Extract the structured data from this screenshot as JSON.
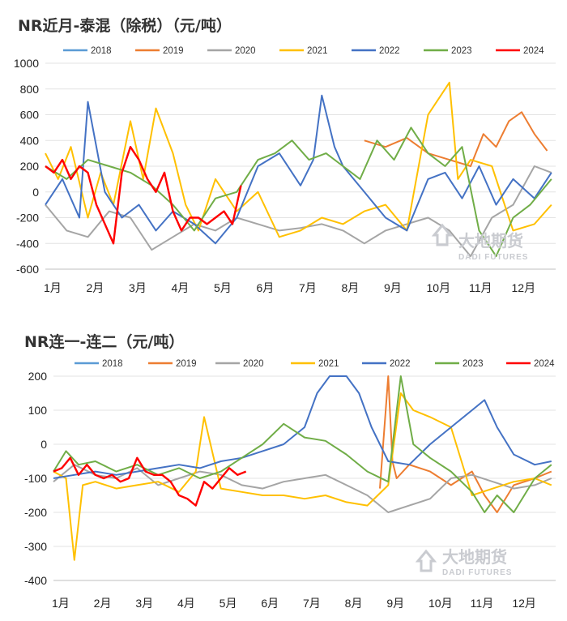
{
  "charts": [
    {
      "title": "NR近月-泰混（除税）（元/吨）",
      "watermark_cn": "大地期货",
      "watermark_en": "DADI FUTURES"
    },
    {
      "title": "NR连一-连二（元/吨）",
      "watermark_cn": "大地期货",
      "watermark_en": "DADI FUTURES"
    }
  ],
  "chart_data": [
    {
      "type": "line",
      "title": "NR近月-泰混（除税）（元/吨）",
      "ylim": [
        -600,
        1000
      ],
      "yticks": [
        1000,
        800,
        600,
        400,
        200,
        0,
        -200,
        -400,
        -600
      ],
      "xticks": [
        "1月",
        "2月",
        "3月",
        "4月",
        "5月",
        "6月",
        "7月",
        "8月",
        "9月",
        "10月",
        "11月",
        "12月"
      ],
      "legend_position": "top",
      "series": [
        {
          "name": "2018",
          "color": "#5b9bd5",
          "x": [],
          "y": []
        },
        {
          "name": "2019",
          "color": "#ed7d31",
          "x": [
            8.5,
            9.0,
            9.5,
            10.0,
            10.5,
            11.0,
            11.3,
            11.6,
            11.9,
            12.2,
            12.5,
            12.8
          ],
          "y": [
            400,
            350,
            420,
            300,
            250,
            200,
            450,
            350,
            550,
            620,
            450,
            320
          ]
        },
        {
          "name": "2020",
          "color": "#a5a5a5",
          "x": [
            1.0,
            1.5,
            2.0,
            2.5,
            3.0,
            3.5,
            4.0,
            4.5,
            5.0,
            5.5,
            6.0,
            6.5,
            7.0,
            7.5,
            8.0,
            8.5,
            9.0,
            9.5,
            10.0,
            10.5,
            11.0,
            11.5,
            12.0,
            12.5,
            12.9
          ],
          "y": [
            -100,
            -300,
            -350,
            -150,
            -200,
            -450,
            -350,
            -250,
            -300,
            -200,
            -250,
            -300,
            -280,
            -250,
            -300,
            -400,
            -300,
            -250,
            -200,
            -300,
            -500,
            -200,
            -100,
            200,
            150
          ]
        },
        {
          "name": "2021",
          "color": "#ffc000",
          "x": [
            1.0,
            1.3,
            1.6,
            2.0,
            2.3,
            2.6,
            3.0,
            3.3,
            3.6,
            4.0,
            4.3,
            4.6,
            5.0,
            5.5,
            6.0,
            6.5,
            7.0,
            7.5,
            8.0,
            8.5,
            9.0,
            9.5,
            10.0,
            10.5,
            10.7,
            11.0,
            11.5,
            12.0,
            12.5,
            12.9
          ],
          "y": [
            300,
            100,
            350,
            -200,
            150,
            -100,
            550,
            100,
            650,
            300,
            -100,
            -300,
            100,
            -150,
            0,
            -350,
            -300,
            -200,
            -250,
            -150,
            -100,
            -300,
            600,
            850,
            100,
            250,
            200,
            -300,
            -250,
            -100
          ]
        },
        {
          "name": "2022",
          "color": "#4472c4",
          "x": [
            1.0,
            1.4,
            1.8,
            2.0,
            2.4,
            2.8,
            3.2,
            3.6,
            4.0,
            4.5,
            5.0,
            5.5,
            6.0,
            6.5,
            7.0,
            7.3,
            7.5,
            7.8,
            8.0,
            8.5,
            9.0,
            9.5,
            10.0,
            10.4,
            10.8,
            11.2,
            11.6,
            12.0,
            12.5,
            12.9
          ],
          "y": [
            -100,
            100,
            -200,
            700,
            0,
            -200,
            -100,
            -300,
            -150,
            -250,
            -400,
            -200,
            200,
            300,
            50,
            250,
            750,
            350,
            200,
            0,
            -200,
            -300,
            100,
            150,
            -50,
            200,
            -100,
            100,
            -50,
            150
          ]
        },
        {
          "name": "2023",
          "color": "#70ad47",
          "x": [
            1.0,
            1.5,
            2.0,
            2.5,
            3.0,
            3.5,
            4.0,
            4.5,
            5.0,
            5.5,
            6.0,
            6.4,
            6.8,
            7.2,
            7.6,
            8.0,
            8.4,
            8.8,
            9.2,
            9.6,
            10.0,
            10.4,
            10.8,
            11.2,
            11.6,
            12.0,
            12.4,
            12.9
          ],
          "y": [
            200,
            100,
            250,
            200,
            150,
            50,
            -100,
            -300,
            -50,
            0,
            250,
            300,
            400,
            250,
            300,
            200,
            100,
            400,
            250,
            500,
            300,
            200,
            350,
            -300,
            -500,
            -200,
            -100,
            100
          ]
        },
        {
          "name": "2024",
          "color": "#ff0000",
          "x": [
            1.0,
            1.2,
            1.4,
            1.6,
            1.8,
            2.0,
            2.2,
            2.4,
            2.6,
            2.8,
            3.0,
            3.2,
            3.4,
            3.6,
            3.8,
            4.0,
            4.2,
            4.4,
            4.6,
            4.8,
            5.0,
            5.2,
            5.4,
            5.6
          ],
          "y": [
            200,
            150,
            250,
            100,
            200,
            150,
            -100,
            -250,
            -400,
            150,
            350,
            250,
            100,
            0,
            150,
            -150,
            -300,
            -200,
            -200,
            -250,
            -200,
            -150,
            -250,
            50
          ]
        }
      ]
    },
    {
      "type": "line",
      "title": "NR连一-连二（元/吨）",
      "ylim": [
        -400,
        200
      ],
      "yticks": [
        200,
        100,
        0,
        -100,
        -200,
        -300,
        -400
      ],
      "xticks": [
        "1月",
        "2月",
        "3月",
        "4月",
        "5月",
        "6月",
        "7月",
        "8月",
        "9月",
        "10月",
        "11月",
        "12月"
      ],
      "legend_position": "top",
      "series": [
        {
          "name": "2018",
          "color": "#5b9bd5",
          "x": [],
          "y": []
        },
        {
          "name": "2019",
          "color": "#ed7d31",
          "x": [
            8.8,
            9.0,
            9.1,
            9.2,
            9.5,
            10.0,
            10.5,
            11.0,
            11.3,
            11.6,
            12.0,
            12.5,
            12.9
          ],
          "y": [
            -130,
            200,
            -50,
            -100,
            -60,
            -80,
            -120,
            -80,
            -150,
            -200,
            -120,
            -100,
            -80
          ]
        },
        {
          "name": "2020",
          "color": "#a5a5a5",
          "x": [
            1.0,
            1.5,
            2.0,
            2.5,
            3.0,
            3.5,
            4.0,
            4.5,
            5.0,
            5.5,
            6.0,
            6.5,
            7.0,
            7.5,
            8.0,
            8.5,
            9.0,
            9.5,
            10.0,
            10.5,
            11.0,
            11.5,
            12.0,
            12.5,
            12.9
          ],
          "y": [
            -110,
            -60,
            -90,
            -100,
            -70,
            -120,
            -100,
            -80,
            -90,
            -120,
            -130,
            -110,
            -100,
            -90,
            -120,
            -150,
            -200,
            -180,
            -160,
            -100,
            -90,
            -110,
            -130,
            -120,
            -100
          ]
        },
        {
          "name": "2021",
          "color": "#ffc000",
          "x": [
            1.0,
            1.3,
            1.5,
            1.7,
            2.0,
            2.5,
            3.0,
            3.5,
            4.0,
            4.4,
            4.6,
            5.0,
            5.5,
            6.0,
            6.5,
            7.0,
            7.5,
            8.0,
            8.5,
            9.0,
            9.3,
            9.6,
            10.0,
            10.5,
            11.0,
            11.5,
            12.0,
            12.5,
            12.9
          ],
          "y": [
            -80,
            -100,
            -340,
            -120,
            -110,
            -130,
            -120,
            -110,
            -140,
            -80,
            80,
            -130,
            -140,
            -150,
            -150,
            -160,
            -150,
            -170,
            -180,
            -120,
            150,
            100,
            80,
            50,
            -150,
            -130,
            -110,
            -100,
            -120
          ]
        },
        {
          "name": "2022",
          "color": "#4472c4",
          "x": [
            1.0,
            1.5,
            2.0,
            2.5,
            3.0,
            3.5,
            4.0,
            4.5,
            5.0,
            5.5,
            6.0,
            6.5,
            7.0,
            7.3,
            7.6,
            8.0,
            8.3,
            8.6,
            9.0,
            9.5,
            10.0,
            10.5,
            11.0,
            11.3,
            11.6,
            12.0,
            12.5,
            12.9
          ],
          "y": [
            -100,
            -90,
            -80,
            -90,
            -80,
            -70,
            -60,
            -70,
            -50,
            -40,
            -20,
            0,
            50,
            150,
            200,
            200,
            150,
            50,
            -50,
            -60,
            0,
            50,
            100,
            130,
            50,
            -30,
            -60,
            -50
          ]
        },
        {
          "name": "2023",
          "color": "#70ad47",
          "x": [
            1.0,
            1.3,
            1.6,
            2.0,
            2.5,
            3.0,
            3.5,
            4.0,
            4.5,
            5.0,
            5.5,
            6.0,
            6.5,
            7.0,
            7.5,
            8.0,
            8.5,
            9.0,
            9.3,
            9.6,
            10.0,
            10.5,
            11.0,
            11.3,
            11.6,
            12.0,
            12.5,
            12.9
          ],
          "y": [
            -80,
            -20,
            -60,
            -50,
            -80,
            -60,
            -90,
            -70,
            -100,
            -80,
            -40,
            0,
            60,
            20,
            10,
            -30,
            -80,
            -110,
            200,
            0,
            -40,
            -80,
            -140,
            -200,
            -150,
            -200,
            -100,
            -60
          ]
        },
        {
          "name": "2024",
          "color": "#ff0000",
          "x": [
            1.0,
            1.2,
            1.4,
            1.6,
            1.8,
            2.0,
            2.2,
            2.4,
            2.6,
            2.8,
            3.0,
            3.2,
            3.4,
            3.6,
            3.8,
            4.0,
            4.2,
            4.4,
            4.6,
            4.8,
            5.0,
            5.2,
            5.4,
            5.6
          ],
          "y": [
            -80,
            -70,
            -40,
            -90,
            -60,
            -90,
            -100,
            -90,
            -110,
            -100,
            -40,
            -80,
            -90,
            -90,
            -110,
            -150,
            -160,
            -180,
            -110,
            -130,
            -100,
            -70,
            -90,
            -80
          ]
        }
      ]
    }
  ]
}
